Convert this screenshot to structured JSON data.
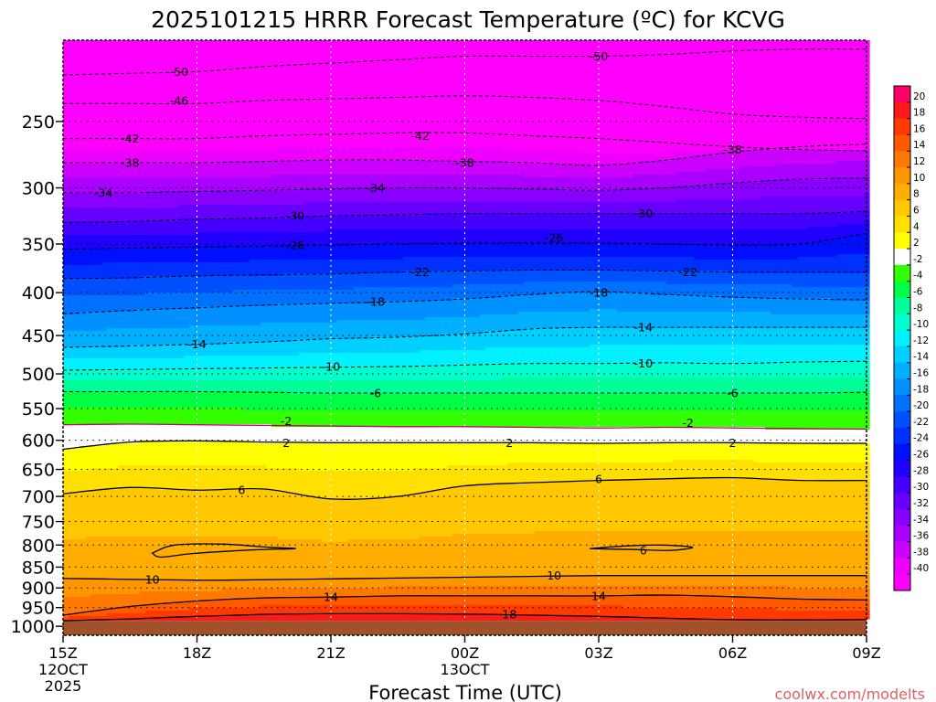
{
  "chart_data": {
    "type": "heatmap",
    "title": "2025101215 HRRR Forecast Temperature (ºC) for KCVG",
    "xlabel": "Forecast Time (UTC)",
    "ylabel": "",
    "credit": "coolwx.com/modelts",
    "x_ticks": [
      {
        "hour": 0,
        "lines": [
          "15Z",
          "12OCT",
          "2025"
        ]
      },
      {
        "hour": 3,
        "lines": [
          "18Z"
        ]
      },
      {
        "hour": 6,
        "lines": [
          "21Z"
        ]
      },
      {
        "hour": 9,
        "lines": [
          "00Z",
          "13OCT"
        ]
      },
      {
        "hour": 12,
        "lines": [
          "03Z"
        ]
      },
      {
        "hour": 15,
        "lines": [
          "06Z"
        ]
      },
      {
        "hour": 18,
        "lines": [
          "09Z"
        ]
      }
    ],
    "xlim": [
      0,
      18
    ],
    "y_ticks": [
      250,
      300,
      350,
      400,
      450,
      500,
      550,
      600,
      650,
      700,
      750,
      800,
      850,
      900,
      950,
      1000
    ],
    "ylim_hPa": [
      200,
      1025
    ],
    "surface_pressure_hPa": 985,
    "colorbar": {
      "ticks": [
        20,
        18,
        16,
        14,
        12,
        10,
        8,
        6,
        4,
        2,
        -2,
        -4,
        -6,
        -8,
        -10,
        -12,
        -14,
        -16,
        -18,
        -20,
        -22,
        -24,
        -26,
        -28,
        -30,
        -32,
        -34,
        -36,
        -38,
        -40
      ],
      "colors": [
        "#ff0066",
        "#ff1a1a",
        "#ff3a00",
        "#ff5a00",
        "#ff7800",
        "#ff9600",
        "#ffae00",
        "#ffc800",
        "#ffe000",
        "#ffff00",
        "#ffffff",
        "#33ff00",
        "#00ff44",
        "#00ff99",
        "#00ffcc",
        "#00f0ff",
        "#00d0ff",
        "#00b0ff",
        "#0090ff",
        "#0070ff",
        "#0050ff",
        "#0030ff",
        "#0010ff",
        "#2000ff",
        "#4400ff",
        "#6600ff",
        "#8800ff",
        "#aa00ff",
        "#cc00ff",
        "#ee00ff",
        "#ff00ff"
      ]
    },
    "contour_hours": [
      0,
      1.5,
      3,
      4.5,
      6,
      7.5,
      9,
      10.5,
      12,
      13.5,
      15,
      16.5,
      18
    ],
    "contours": [
      {
        "value": -50,
        "dashed": true,
        "pressures": [
          220,
          219,
          218,
          215,
          213,
          211,
          209,
          209,
          209,
          208,
          206,
          205,
          205
        ]
      },
      {
        "value": -46,
        "dashed": true,
        "pressures": [
          238,
          238,
          238,
          236,
          235,
          234,
          233,
          234,
          236,
          240,
          245,
          247,
          248
        ]
      },
      {
        "value": -42,
        "dashed": true,
        "pressures": [
          262,
          262,
          262,
          260,
          259,
          258,
          258,
          260,
          262,
          265,
          268,
          270,
          271
        ]
      },
      {
        "value": -38,
        "dashed": true,
        "pressures": [
          280,
          280,
          280,
          279,
          278,
          278,
          279,
          280,
          282,
          278,
          272,
          268,
          266
        ]
      },
      {
        "value": -34,
        "dashed": true,
        "pressures": [
          304,
          304,
          303,
          302,
          301,
          300,
          300,
          301,
          302,
          300,
          296,
          293,
          292
        ]
      },
      {
        "value": -30,
        "dashed": true,
        "pressures": [
          330,
          329,
          327,
          326,
          324,
          323,
          322,
          322,
          322,
          322,
          322,
          322,
          320
        ]
      },
      {
        "value": -26,
        "dashed": true,
        "pressures": [
          355,
          354,
          353,
          352,
          351,
          350,
          349,
          349,
          349,
          350,
          351,
          350,
          340
        ]
      },
      {
        "value": -22,
        "dashed": true,
        "pressures": [
          385,
          384,
          382,
          381,
          380,
          378,
          377,
          376,
          376,
          377,
          378,
          378,
          378
        ]
      },
      {
        "value": -18,
        "dashed": true,
        "pressures": [
          424,
          420,
          417,
          414,
          412,
          410,
          407,
          402,
          399,
          402,
          405,
          407,
          408
        ]
      },
      {
        "value": -14,
        "dashed": true,
        "pressures": [
          465,
          463,
          461,
          458,
          454,
          452,
          448,
          442,
          440,
          440,
          440,
          440,
          440
        ]
      },
      {
        "value": -10,
        "dashed": true,
        "pressures": [
          495,
          494,
          493,
          492,
          491,
          490,
          488,
          486,
          486,
          485,
          486,
          484,
          483
        ]
      },
      {
        "value": -6,
        "dashed": true,
        "pressures": [
          525,
          525,
          525,
          526,
          527,
          527,
          527,
          527,
          527,
          527,
          527,
          527,
          526
        ]
      },
      {
        "value": -2,
        "dashed": false,
        "color": "#cc0066",
        "pressures": [
          575,
          574,
          575,
          576,
          577,
          578,
          578,
          579,
          580,
          579,
          580,
          581,
          582
        ]
      },
      {
        "value": 2,
        "dashed": false,
        "pressures": [
          615,
          603,
          601,
          603,
          604,
          604,
          604,
          604,
          605,
          604,
          604,
          605,
          605
        ]
      },
      {
        "value": 6,
        "dashed": false,
        "pressures": [
          695,
          683,
          688,
          686,
          705,
          700,
          680,
          674,
          670,
          667,
          665,
          670,
          670
        ]
      },
      {
        "value": 10,
        "dashed": false,
        "pressures": [
          877,
          879,
          881,
          880,
          878,
          876,
          874,
          872,
          870,
          870,
          870,
          870,
          870
        ]
      },
      {
        "value": 14,
        "dashed": false,
        "pressures": [
          970,
          947,
          933,
          925,
          923,
          920,
          920,
          920,
          920,
          918,
          922,
          928,
          930
        ]
      },
      {
        "value": 18,
        "dashed": false,
        "pressures": [
          985,
          980,
          973,
          968,
          966,
          966,
          967,
          970,
          973,
          978,
          982,
          983,
          982
        ]
      }
    ],
    "contour_labels": [
      {
        "text": "-50",
        "hour": 2.6,
        "p": 218
      },
      {
        "text": "-50",
        "hour": 12.0,
        "p": 209
      },
      {
        "text": "-46",
        "hour": 2.6,
        "p": 236
      },
      {
        "text": "-42",
        "hour": 1.5,
        "p": 262
      },
      {
        "text": "-42",
        "hour": 8.0,
        "p": 260
      },
      {
        "text": "-38",
        "hour": 1.5,
        "p": 280
      },
      {
        "text": "-38",
        "hour": 9.0,
        "p": 280
      },
      {
        "text": "-38",
        "hour": 15.0,
        "p": 270
      },
      {
        "text": "-34",
        "hour": 0.9,
        "p": 304
      },
      {
        "text": "-34",
        "hour": 7.0,
        "p": 300
      },
      {
        "text": "-30",
        "hour": 5.2,
        "p": 324
      },
      {
        "text": "-30",
        "hour": 13.0,
        "p": 322
      },
      {
        "text": "-26",
        "hour": 5.2,
        "p": 351
      },
      {
        "text": "-26",
        "hour": 11.0,
        "p": 344
      },
      {
        "text": "-22",
        "hour": 8.0,
        "p": 378
      },
      {
        "text": "-22",
        "hour": 14.0,
        "p": 378
      },
      {
        "text": "-18",
        "hour": 7.0,
        "p": 410
      },
      {
        "text": "-18",
        "hour": 12.0,
        "p": 400
      },
      {
        "text": "-14",
        "hour": 3.0,
        "p": 461
      },
      {
        "text": "-14",
        "hour": 13.0,
        "p": 440
      },
      {
        "text": "-10",
        "hour": 6.0,
        "p": 490
      },
      {
        "text": "-10",
        "hour": 13.0,
        "p": 486
      },
      {
        "text": "-6",
        "hour": 7.0,
        "p": 527
      },
      {
        "text": "-6",
        "hour": 15.0,
        "p": 527
      },
      {
        "text": "-2",
        "hour": 5.0,
        "p": 569
      },
      {
        "text": "-2",
        "hour": 14.0,
        "p": 572
      },
      {
        "text": "2",
        "hour": 5.0,
        "p": 604
      },
      {
        "text": "2",
        "hour": 10.0,
        "p": 604
      },
      {
        "text": "2",
        "hour": 15.0,
        "p": 604
      },
      {
        "text": "6",
        "hour": 4.0,
        "p": 688
      },
      {
        "text": "6",
        "hour": 12.0,
        "p": 667
      },
      {
        "text": "6",
        "hour": 13.0,
        "p": 812
      },
      {
        "text": "10",
        "hour": 2.0,
        "p": 880
      },
      {
        "text": "10",
        "hour": 11.0,
        "p": 870
      },
      {
        "text": "14",
        "hour": 6.0,
        "p": 923
      },
      {
        "text": "14",
        "hour": 12.0,
        "p": 920
      },
      {
        "text": "18",
        "hour": 10.0,
        "p": 968
      }
    ],
    "closed_contours": [
      {
        "value": 6,
        "points": [
          [
            2.0,
            818
          ],
          [
            2.5,
            800
          ],
          [
            3.6,
            798
          ],
          [
            4.6,
            805
          ],
          [
            5.2,
            808
          ],
          [
            4.2,
            811
          ],
          [
            2.9,
            819
          ],
          [
            2.2,
            827
          ]
        ]
      },
      {
        "value": 6,
        "points": [
          [
            11.8,
            808
          ],
          [
            12.6,
            802
          ],
          [
            13.4,
            800
          ],
          [
            14.1,
            805
          ],
          [
            13.6,
            812
          ],
          [
            12.8,
            810
          ]
        ]
      }
    ]
  }
}
